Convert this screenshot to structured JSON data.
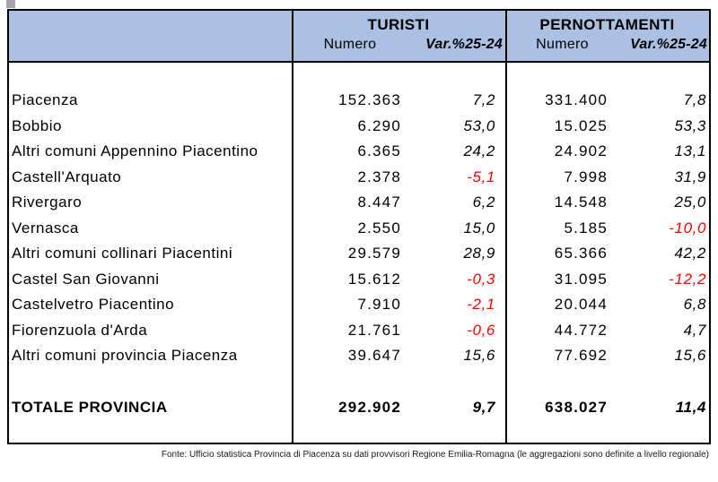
{
  "colors": {
    "header_bg": "#abc0e2",
    "border": "#000000",
    "negative": "#ff0000"
  },
  "header": {
    "turisti": "TURISTI",
    "pernottamenti": "PERNOTTAMENTI",
    "numero_label": "Numero",
    "var_label": "Var.%25-24"
  },
  "rows": [
    {
      "label": "Piacenza",
      "turisti_numero": "152.363",
      "turisti_var": "7,2",
      "pernottamenti_numero": "331.400",
      "pernottamenti_var": "7,8"
    },
    {
      "label": "Bobbio",
      "turisti_numero": "6.290",
      "turisti_var": "53,0",
      "pernottamenti_numero": "15.025",
      "pernottamenti_var": "53,3"
    },
    {
      "label": "Altri comuni Appennino Piacentino",
      "turisti_numero": "6.365",
      "turisti_var": "24,2",
      "pernottamenti_numero": "24.902",
      "pernottamenti_var": "13,1"
    },
    {
      "label": "Castell'Arquato",
      "turisti_numero": "2.378",
      "turisti_var": "-5,1",
      "pernottamenti_numero": "7.998",
      "pernottamenti_var": "31,9"
    },
    {
      "label": "Rivergaro",
      "turisti_numero": "8.447",
      "turisti_var": "6,2",
      "pernottamenti_numero": "14.548",
      "pernottamenti_var": "25,0"
    },
    {
      "label": "Vernasca",
      "turisti_numero": "2.550",
      "turisti_var": "15,0",
      "pernottamenti_numero": "5.185",
      "pernottamenti_var": "-10,0"
    },
    {
      "label": "Altri comuni collinari Piacentini",
      "turisti_numero": "29.579",
      "turisti_var": "28,9",
      "pernottamenti_numero": "65.366",
      "pernottamenti_var": "42,2"
    },
    {
      "label": "Castel San Giovanni",
      "turisti_numero": "15.612",
      "turisti_var": "-0,3",
      "pernottamenti_numero": "31.095",
      "pernottamenti_var": "-12,2"
    },
    {
      "label": "Castelvetro Piacentino",
      "turisti_numero": "7.910",
      "turisti_var": "-2,1",
      "pernottamenti_numero": "20.044",
      "pernottamenti_var": "6,8"
    },
    {
      "label": "Fiorenzuola d'Arda",
      "turisti_numero": "21.761",
      "turisti_var": "-0,6",
      "pernottamenti_numero": "44.772",
      "pernottamenti_var": "4,7"
    },
    {
      "label": "Altri comuni provincia Piacenza",
      "turisti_numero": "39.647",
      "turisti_var": "15,6",
      "pernottamenti_numero": "77.692",
      "pernottamenti_var": "15,6"
    }
  ],
  "total": {
    "label": "TOTALE PROVINCIA",
    "turisti_numero": "292.902",
    "turisti_var": "9,7",
    "pernottamenti_numero": "638.027",
    "pernottamenti_var": "11,4"
  },
  "footer": "Fonte: Ufficio statistica Provincia di Piacenza su dati provvisori Regione Emilia-Romagna (le aggregazioni sono definite a livello regionale)"
}
